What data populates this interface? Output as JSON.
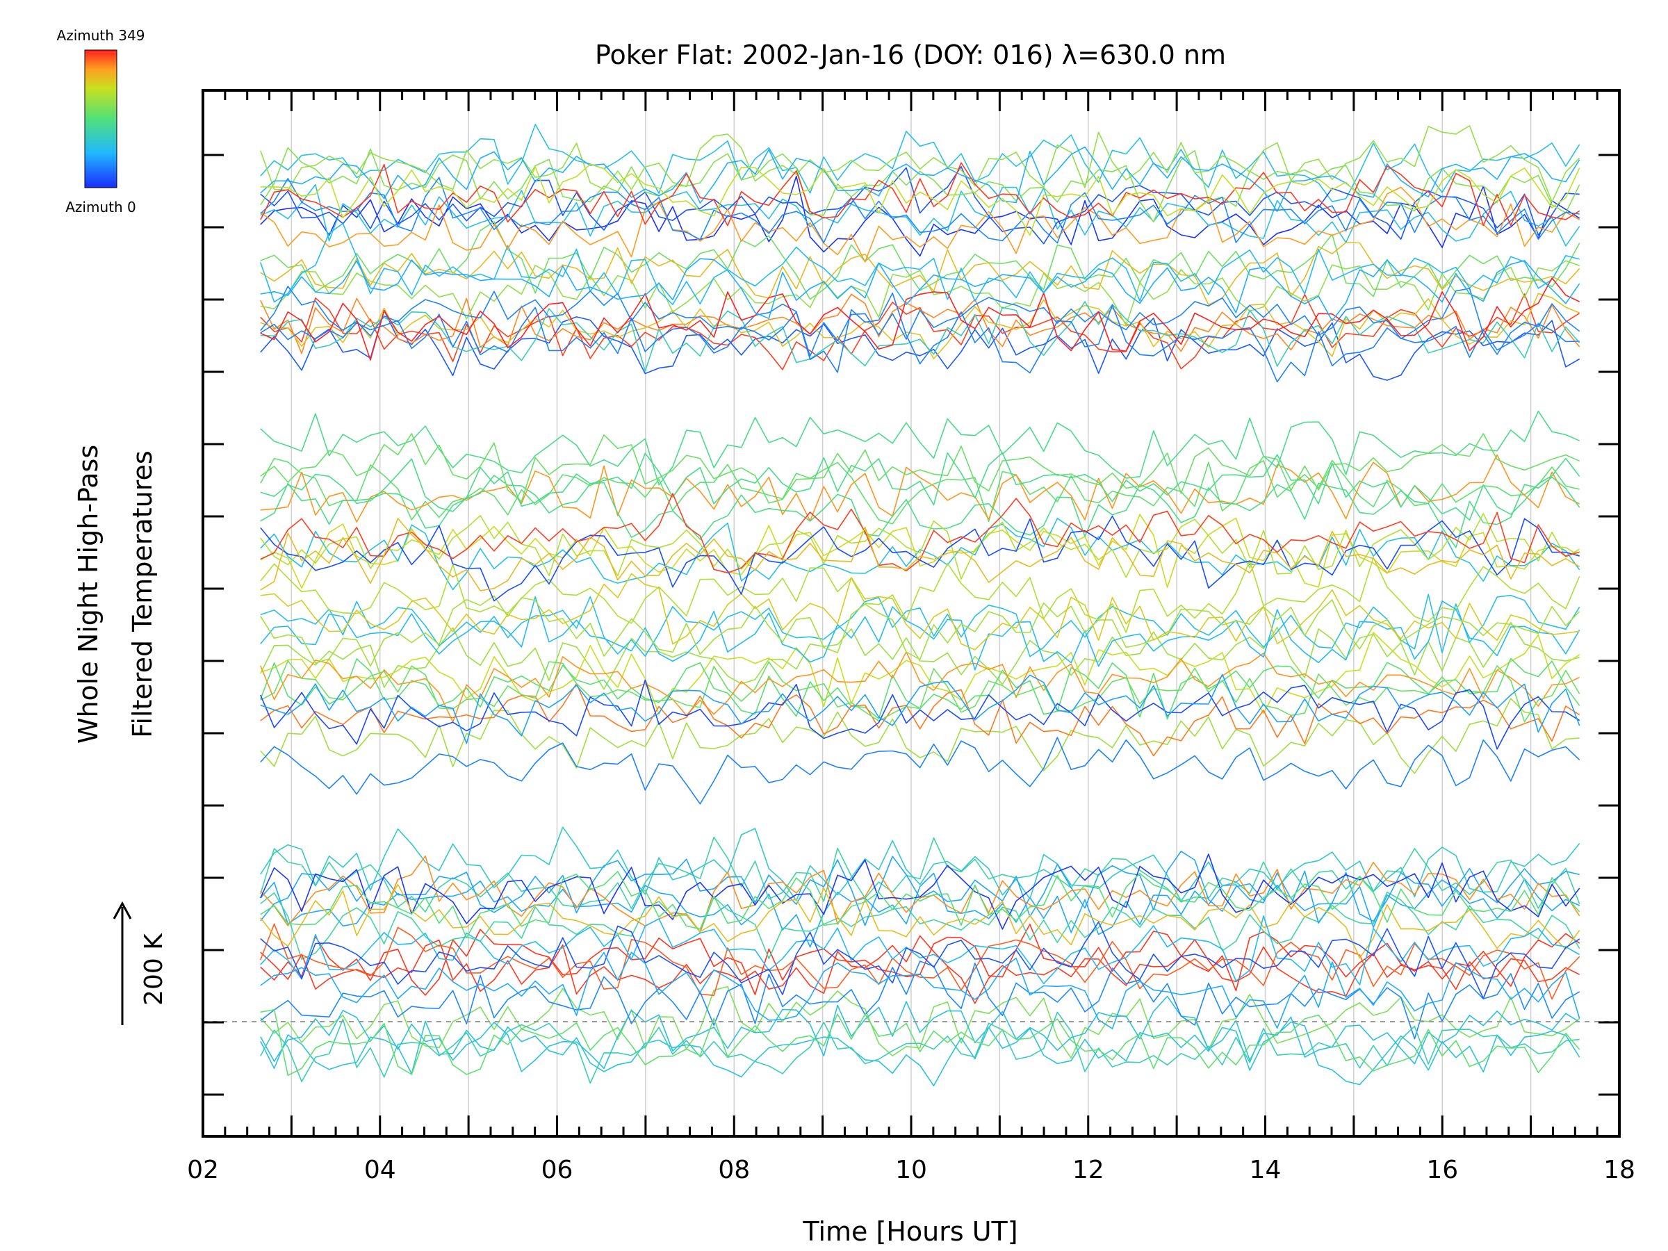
{
  "chart_data": {
    "type": "line",
    "title": "Poker Flat: 2002-Jan-16 (DOY: 016) λ=630.0 nm",
    "xlabel": "Time [Hours UT]",
    "ylabel_line1": "Whole Night High-Pass",
    "ylabel_line2": "Filtered Temperatures",
    "xlim": [
      2,
      18
    ],
    "x_ticks": [
      "02",
      "04",
      "06",
      "08",
      "10",
      "12",
      "14",
      "16",
      "18"
    ],
    "x_tick_values": [
      2,
      4,
      6,
      8,
      10,
      12,
      14,
      16,
      18
    ],
    "x_start": 2.65,
    "x_end": 17.55,
    "n_samples": 97,
    "scale_bar_label": "200 K",
    "colorbar_top_label": "Azimuth 349",
    "colorbar_bottom_label": "Azimuth 0",
    "grid": "vertical dotted lines at each hour",
    "series_note": "high-pass filtered temperature traces, vertically offset, coloured by azimuth",
    "colors": {
      "low_azimuth": "#2020ff",
      "mid_low": "#20c0ff",
      "mid": "#40e080",
      "mid_high": "#c0e020",
      "high_azimuth": "#ff2020"
    },
    "series_count": 72
  }
}
